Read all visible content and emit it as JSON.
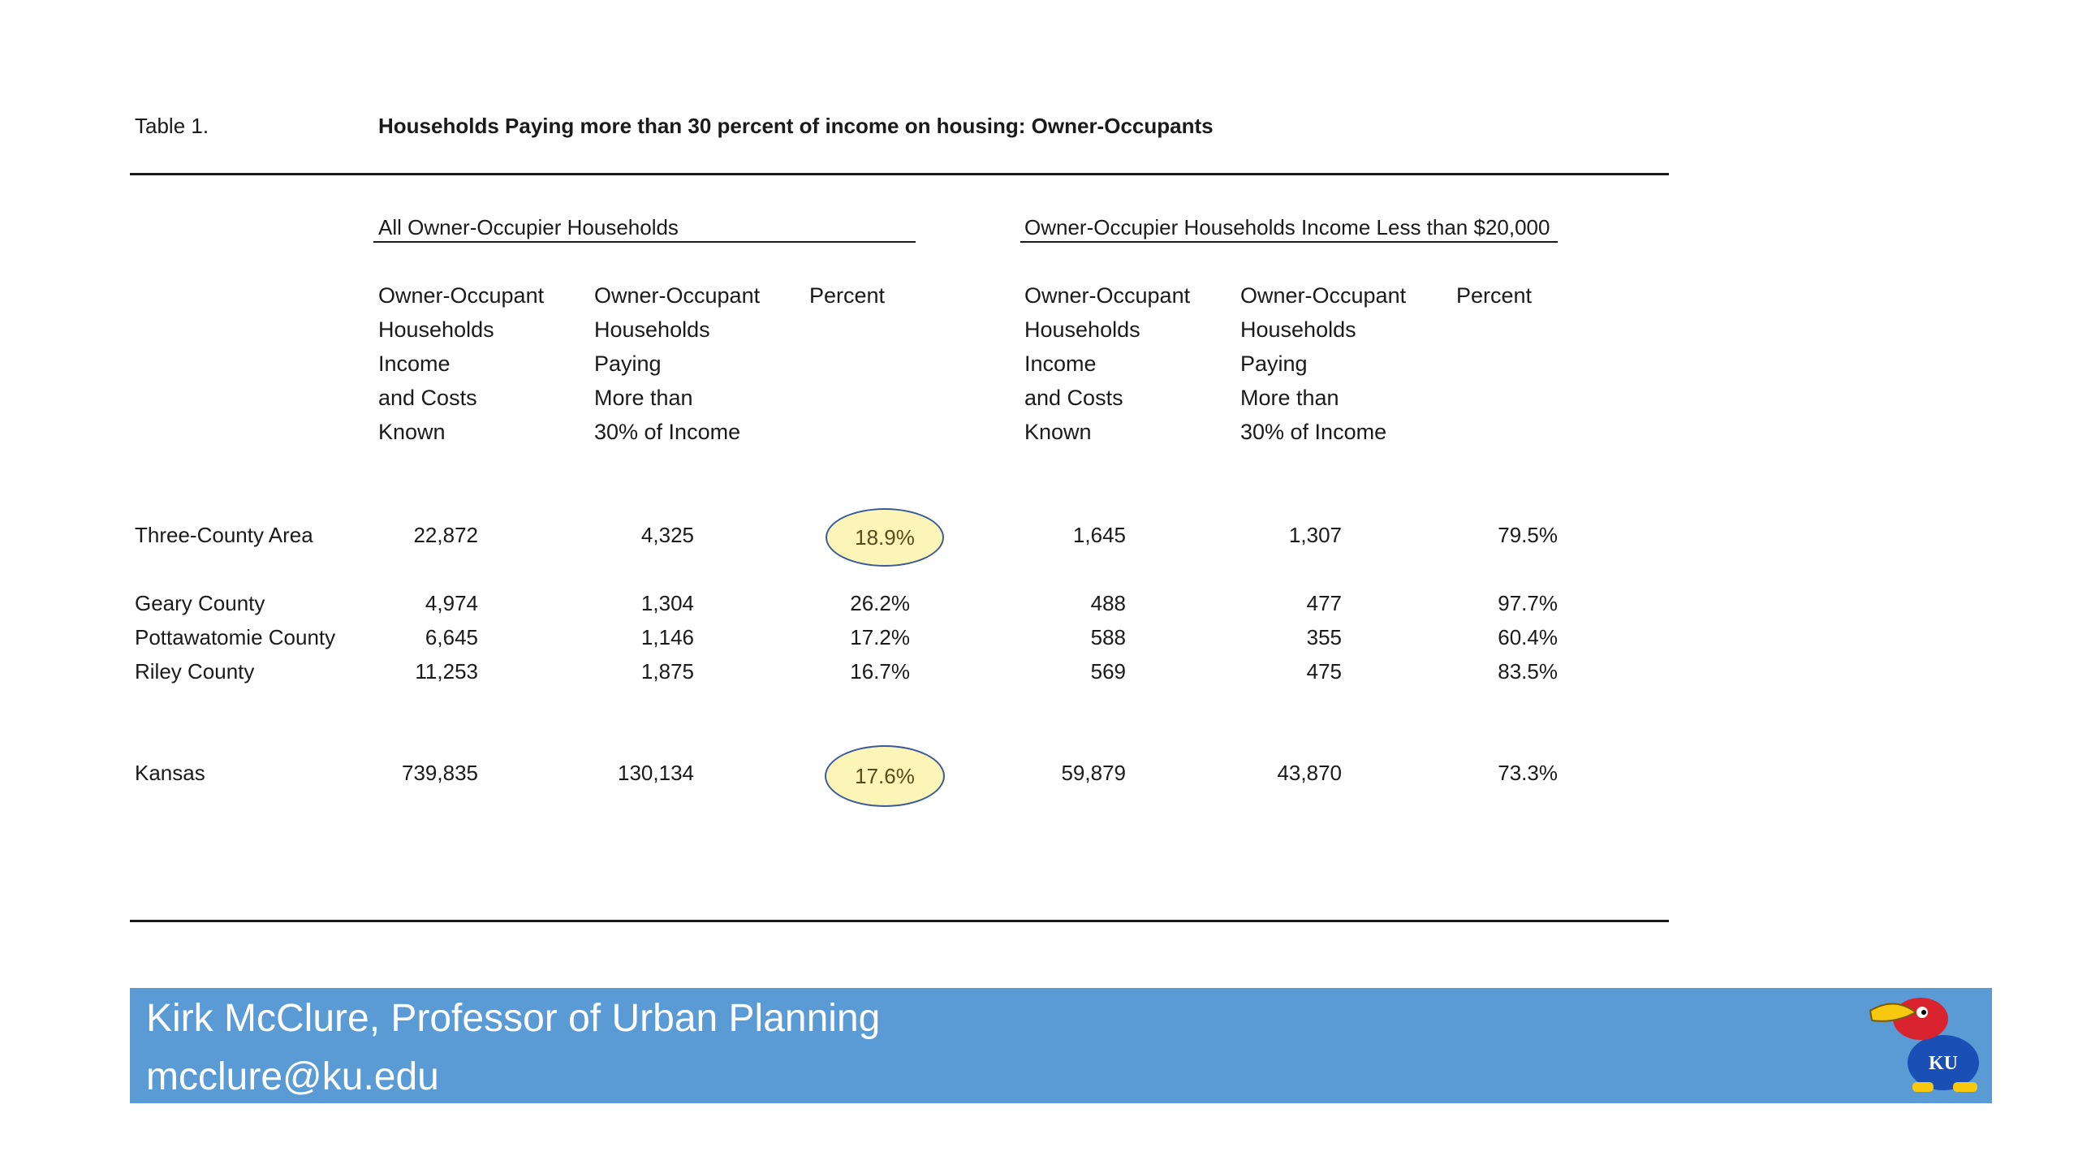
{
  "table": {
    "label": "Table 1.",
    "title": "Households Paying more than 30 percent of income on housing: Owner-Occupants",
    "group_left": "All Owner-Occupier Households",
    "group_right": "Owner-Occupier Households Income Less than $20,000",
    "col_headers": {
      "c1": [
        "Owner-Occupant",
        "Households",
        "Income",
        "and Costs",
        "Known"
      ],
      "c2": [
        "Owner-Occupant",
        "Households",
        "Paying",
        "More than",
        "30% of Income"
      ],
      "c3": [
        "Percent"
      ],
      "c4": [
        "Owner-Occupant",
        "Households",
        "Income",
        "and Costs",
        "Known"
      ],
      "c5": [
        "Owner-Occupant",
        "Households",
        "Paying",
        "More than",
        "30% of Income"
      ],
      "c6": [
        "Percent"
      ]
    },
    "rows": [
      {
        "name": "Three-County Area",
        "c1": "22,872",
        "c2": "4,325",
        "c3": "18.9%",
        "c4": "1,645",
        "c5": "1,307",
        "c6": "79.5%"
      },
      {
        "name": "Geary County",
        "c1": "4,974",
        "c2": "1,304",
        "c3": "26.2%",
        "c4": "488",
        "c5": "477",
        "c6": "97.7%"
      },
      {
        "name": "Pottawatomie County",
        "c1": "6,645",
        "c2": "1,146",
        "c3": "17.2%",
        "c4": "588",
        "c5": "355",
        "c6": "60.4%"
      },
      {
        "name": "Riley County",
        "c1": "11,253",
        "c2": "1,875",
        "c3": "16.7%",
        "c4": "569",
        "c5": "475",
        "c6": "83.5%"
      },
      {
        "name": "Kansas",
        "c1": "739,835",
        "c2": "130,134",
        "c3": "17.6%",
        "c4": "59,879",
        "c5": "43,870",
        "c6": "73.3%"
      }
    ]
  },
  "footer": {
    "line1": "Kirk McClure, Professor of Urban Planning",
    "line2": "mcclure@ku.edu",
    "logo_text": "KU",
    "background": "#5b9bd5"
  },
  "colors": {
    "highlight_fill": "#fbf6b7",
    "highlight_stroke": "#3a5a9a"
  }
}
